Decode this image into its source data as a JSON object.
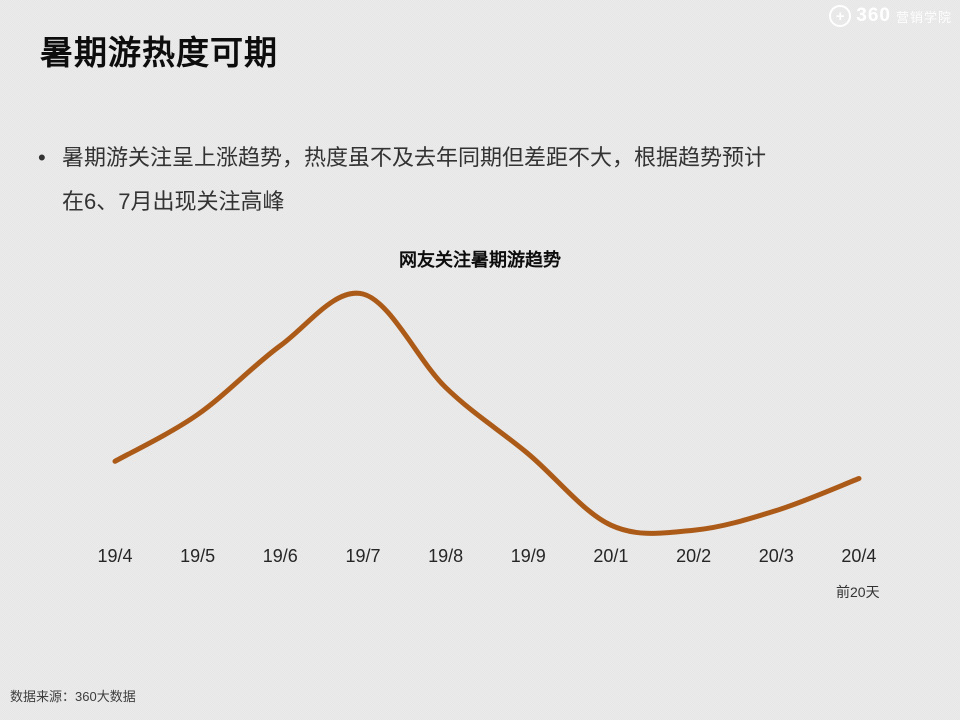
{
  "slide": {
    "title": "暑期游热度可期",
    "bullet": {
      "marker": "•",
      "lines": [
        "暑期游关注呈上涨趋势，热度虽不及去年同期但差距不大，根据趋势预计",
        "在6、7月出现关注高峰"
      ]
    },
    "source": "数据来源：360大数据"
  },
  "logo": {
    "icon": "circle-plus",
    "icon_glyph": "+",
    "brand": "360",
    "suffix": "营销学院",
    "color": "#ffffff"
  },
  "chart_data": {
    "type": "line",
    "title": "网友关注暑期游趋势",
    "categories": [
      "19/4",
      "19/5",
      "19/6",
      "19/7",
      "19/8",
      "19/9",
      "20/1",
      "20/2",
      "20/3",
      "20/4"
    ],
    "series": [
      {
        "name": "网友关注暑期游趋势",
        "values": [
          32,
          51,
          79,
          100,
          62,
          35,
          6,
          4,
          12,
          25
        ]
      }
    ],
    "last_tick_note": "前20天",
    "line_color": "#ac5a17",
    "xlabel": "",
    "ylabel": "",
    "ylim": [
      0,
      110
    ],
    "grid": false,
    "legend": false,
    "axes_hidden": true
  }
}
